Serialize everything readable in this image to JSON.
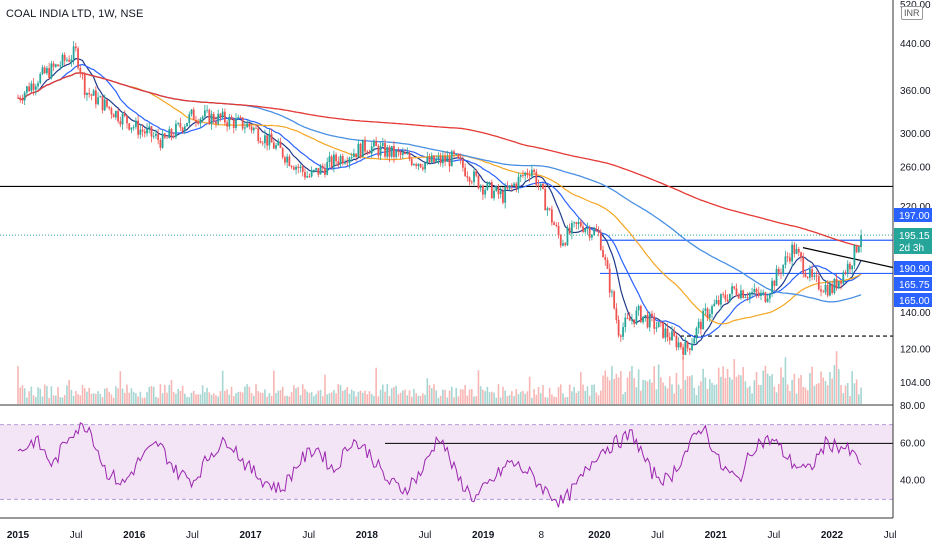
{
  "header": {
    "title": "COAL INDIA LTD, 1W, NSE",
    "currency": "INR"
  },
  "colors": {
    "up": "#26a69a",
    "down": "#ef5350",
    "ema_blue": "#2962ff",
    "ema_navy": "#1e3a8a",
    "ma_orange": "#f5a623",
    "ma_red": "#e53935",
    "ma_lightblue": "#4a90e2",
    "rsi": "#9c27b0",
    "rsi_band": "#f3e5f5",
    "hline": "#000000",
    "box_line": "#2962ff"
  },
  "chart_data": [
    {
      "type": "candlestick",
      "title": "COAL INDIA LTD, 1W, NSE",
      "ylabel": "INR",
      "y_scale": "log",
      "ylim": [
        100,
        520
      ],
      "y_ticks": [
        "520.00",
        "440.00",
        "360.00",
        "300.00",
        "260.00",
        "220.00",
        "195.15",
        "140.00",
        "120.00",
        "104.00"
      ],
      "x_ticks": [
        "2015",
        "Jul",
        "2016",
        "Jul",
        "2017",
        "Jul",
        "2018",
        "Jul",
        "2019",
        "8",
        "2020",
        "Jul",
        "2021",
        "Jul",
        "2022",
        "Jul"
      ],
      "price_path": [
        [
          "2015-01",
          350
        ],
        [
          "2015-03",
          380
        ],
        [
          "2015-05",
          400
        ],
        [
          "2015-07",
          425
        ],
        [
          "2015-08",
          360
        ],
        [
          "2016-01",
          310
        ],
        [
          "2016-04",
          290
        ],
        [
          "2016-07",
          325
        ],
        [
          "2016-10",
          320
        ],
        [
          "2017-01",
          310
        ],
        [
          "2017-04",
          280
        ],
        [
          "2017-07",
          250
        ],
        [
          "2017-10",
          270
        ],
        [
          "2018-01",
          285
        ],
        [
          "2018-04",
          275
        ],
        [
          "2018-07",
          265
        ],
        [
          "2018-10",
          270
        ],
        [
          "2019-01",
          240
        ],
        [
          "2019-03",
          230
        ],
        [
          "2019-05",
          250
        ],
        [
          "2019-06",
          260
        ],
        [
          "2019-09",
          190
        ],
        [
          "2019-11",
          205
        ],
        [
          "2020-01",
          195
        ],
        [
          "2020-03",
          130
        ],
        [
          "2020-05",
          140
        ],
        [
          "2020-07",
          132
        ],
        [
          "2020-10",
          120
        ],
        [
          "2020-12",
          140
        ],
        [
          "2021-03",
          155
        ],
        [
          "2021-06",
          150
        ],
        [
          "2021-09",
          185
        ],
        [
          "2021-11",
          160
        ],
        [
          "2022-01",
          155
        ],
        [
          "2022-03",
          175
        ],
        [
          "2022-04",
          195.15
        ]
      ],
      "horizontal_lines": [
        {
          "value": 240,
          "style": "solid",
          "color": "#000000"
        },
        {
          "value": 197,
          "label": "197.00",
          "color": "#2962ff"
        },
        {
          "value": 195.15,
          "label": "195.15",
          "sublabel": "2d 3h",
          "style": "dotted",
          "color": "#26a69a"
        },
        {
          "value": 190.9,
          "label": "190.90",
          "color": "#2962ff"
        },
        {
          "value": 165.75,
          "label": "165.75",
          "color": "#2962ff"
        },
        {
          "value": 165,
          "label": "165.00",
          "color": "#2962ff"
        },
        {
          "value": 127,
          "style": "dashed",
          "color": "#000000"
        }
      ],
      "volume": "shown as histogram at bottom of price pane"
    },
    {
      "type": "line",
      "title": "",
      "ylim": [
        20,
        80
      ],
      "y_ticks": [
        "80.00",
        "60.00",
        "40.00"
      ],
      "band": [
        30,
        70
      ],
      "series": [
        {
          "values": [
            55,
            62,
            48,
            66,
            70,
            45,
            38,
            52,
            60,
            45,
            40,
            55,
            62,
            48,
            40,
            35,
            50,
            58,
            45,
            62,
            55,
            40,
            35,
            45,
            65,
            42,
            30,
            40,
            50,
            45,
            35,
            28,
            40,
            55,
            60,
            65,
            45,
            40,
            55,
            70,
            48,
            40,
            60,
            62,
            50,
            45,
            60,
            58,
            50
          ]
        }
      ],
      "horizontal_lines": [
        {
          "value": 60,
          "color": "#000000"
        }
      ]
    }
  ]
}
